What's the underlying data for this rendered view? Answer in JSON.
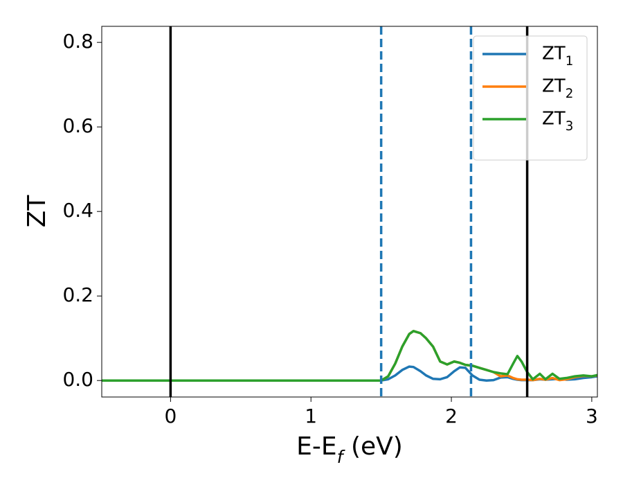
{
  "chart_data": {
    "type": "line",
    "x_label": "E-E_f (eV)",
    "y_label": "ZT",
    "x": [
      -0.49,
      0,
      0.5,
      1.0,
      1.45,
      1.5,
      1.55,
      1.6,
      1.65,
      1.7,
      1.73,
      1.78,
      1.82,
      1.87,
      1.92,
      1.97,
      2.02,
      2.06,
      2.1,
      2.15,
      2.2,
      2.25,
      2.3,
      2.35,
      2.4,
      2.44,
      2.47,
      2.5,
      2.54,
      2.58,
      2.63,
      2.67,
      2.72,
      2.77,
      2.82,
      2.88,
      2.94,
      3.0,
      3.04
    ],
    "series": [
      {
        "name": "ZT_1",
        "color": "#1f77b4",
        "values": [
          0,
          0,
          0,
          0,
          0,
          0,
          0.003,
          0.012,
          0.025,
          0.033,
          0.032,
          0.022,
          0.012,
          0.004,
          0.003,
          0.008,
          0.022,
          0.031,
          0.03,
          0.012,
          0.002,
          0,
          0.001,
          0.007,
          0.008,
          0.004,
          0.002,
          0.001,
          0.001,
          0.001,
          0.003,
          0.002,
          0.003,
          0.004,
          0.002,
          0.003,
          0.006,
          0.008,
          0.01
        ]
      },
      {
        "name": "ZT_2",
        "color": "#ff7f0e",
        "values": [
          0,
          0,
          0,
          0,
          0,
          0,
          0.01,
          0.04,
          0.08,
          0.11,
          0.117,
          0.112,
          0.1,
          0.08,
          0.045,
          0.038,
          0.045,
          0.042,
          0.037,
          0.035,
          0.03,
          0.025,
          0.02,
          0.01,
          0.012,
          0.006,
          0.003,
          0.002,
          0.002,
          0.001,
          0.004,
          0.002,
          0.006,
          0.001,
          0.003,
          0.008,
          0.011,
          0.01,
          0.012
        ]
      },
      {
        "name": "ZT_3",
        "color": "#2ca02c",
        "values": [
          0,
          0,
          0,
          0,
          0,
          0,
          0.01,
          0.04,
          0.08,
          0.11,
          0.117,
          0.112,
          0.1,
          0.08,
          0.045,
          0.038,
          0.045,
          0.042,
          0.037,
          0.035,
          0.03,
          0.025,
          0.02,
          0.017,
          0.015,
          0.04,
          0.058,
          0.045,
          0.02,
          0.003,
          0.016,
          0.003,
          0.016,
          0.004,
          0.006,
          0.01,
          0.012,
          0.01,
          0.013
        ]
      }
    ],
    "vlines": [
      {
        "x": 0,
        "color": "#000000",
        "style": "solid"
      },
      {
        "x": 1.5,
        "color": "#1f77b4",
        "style": "dashed"
      },
      {
        "x": 2.14,
        "color": "#1f77b4",
        "style": "dashed"
      },
      {
        "x": 2.54,
        "color": "#000000",
        "style": "solid"
      }
    ],
    "xlim": [
      -0.49,
      3.04
    ],
    "ylim": [
      -0.039,
      0.838
    ],
    "xticks": [
      0,
      1,
      2,
      3
    ],
    "yticks": [
      {
        "value": 0,
        "label": "0.0"
      },
      0.2,
      0.4,
      0.6,
      0.8
    ],
    "legend": "upper right"
  }
}
